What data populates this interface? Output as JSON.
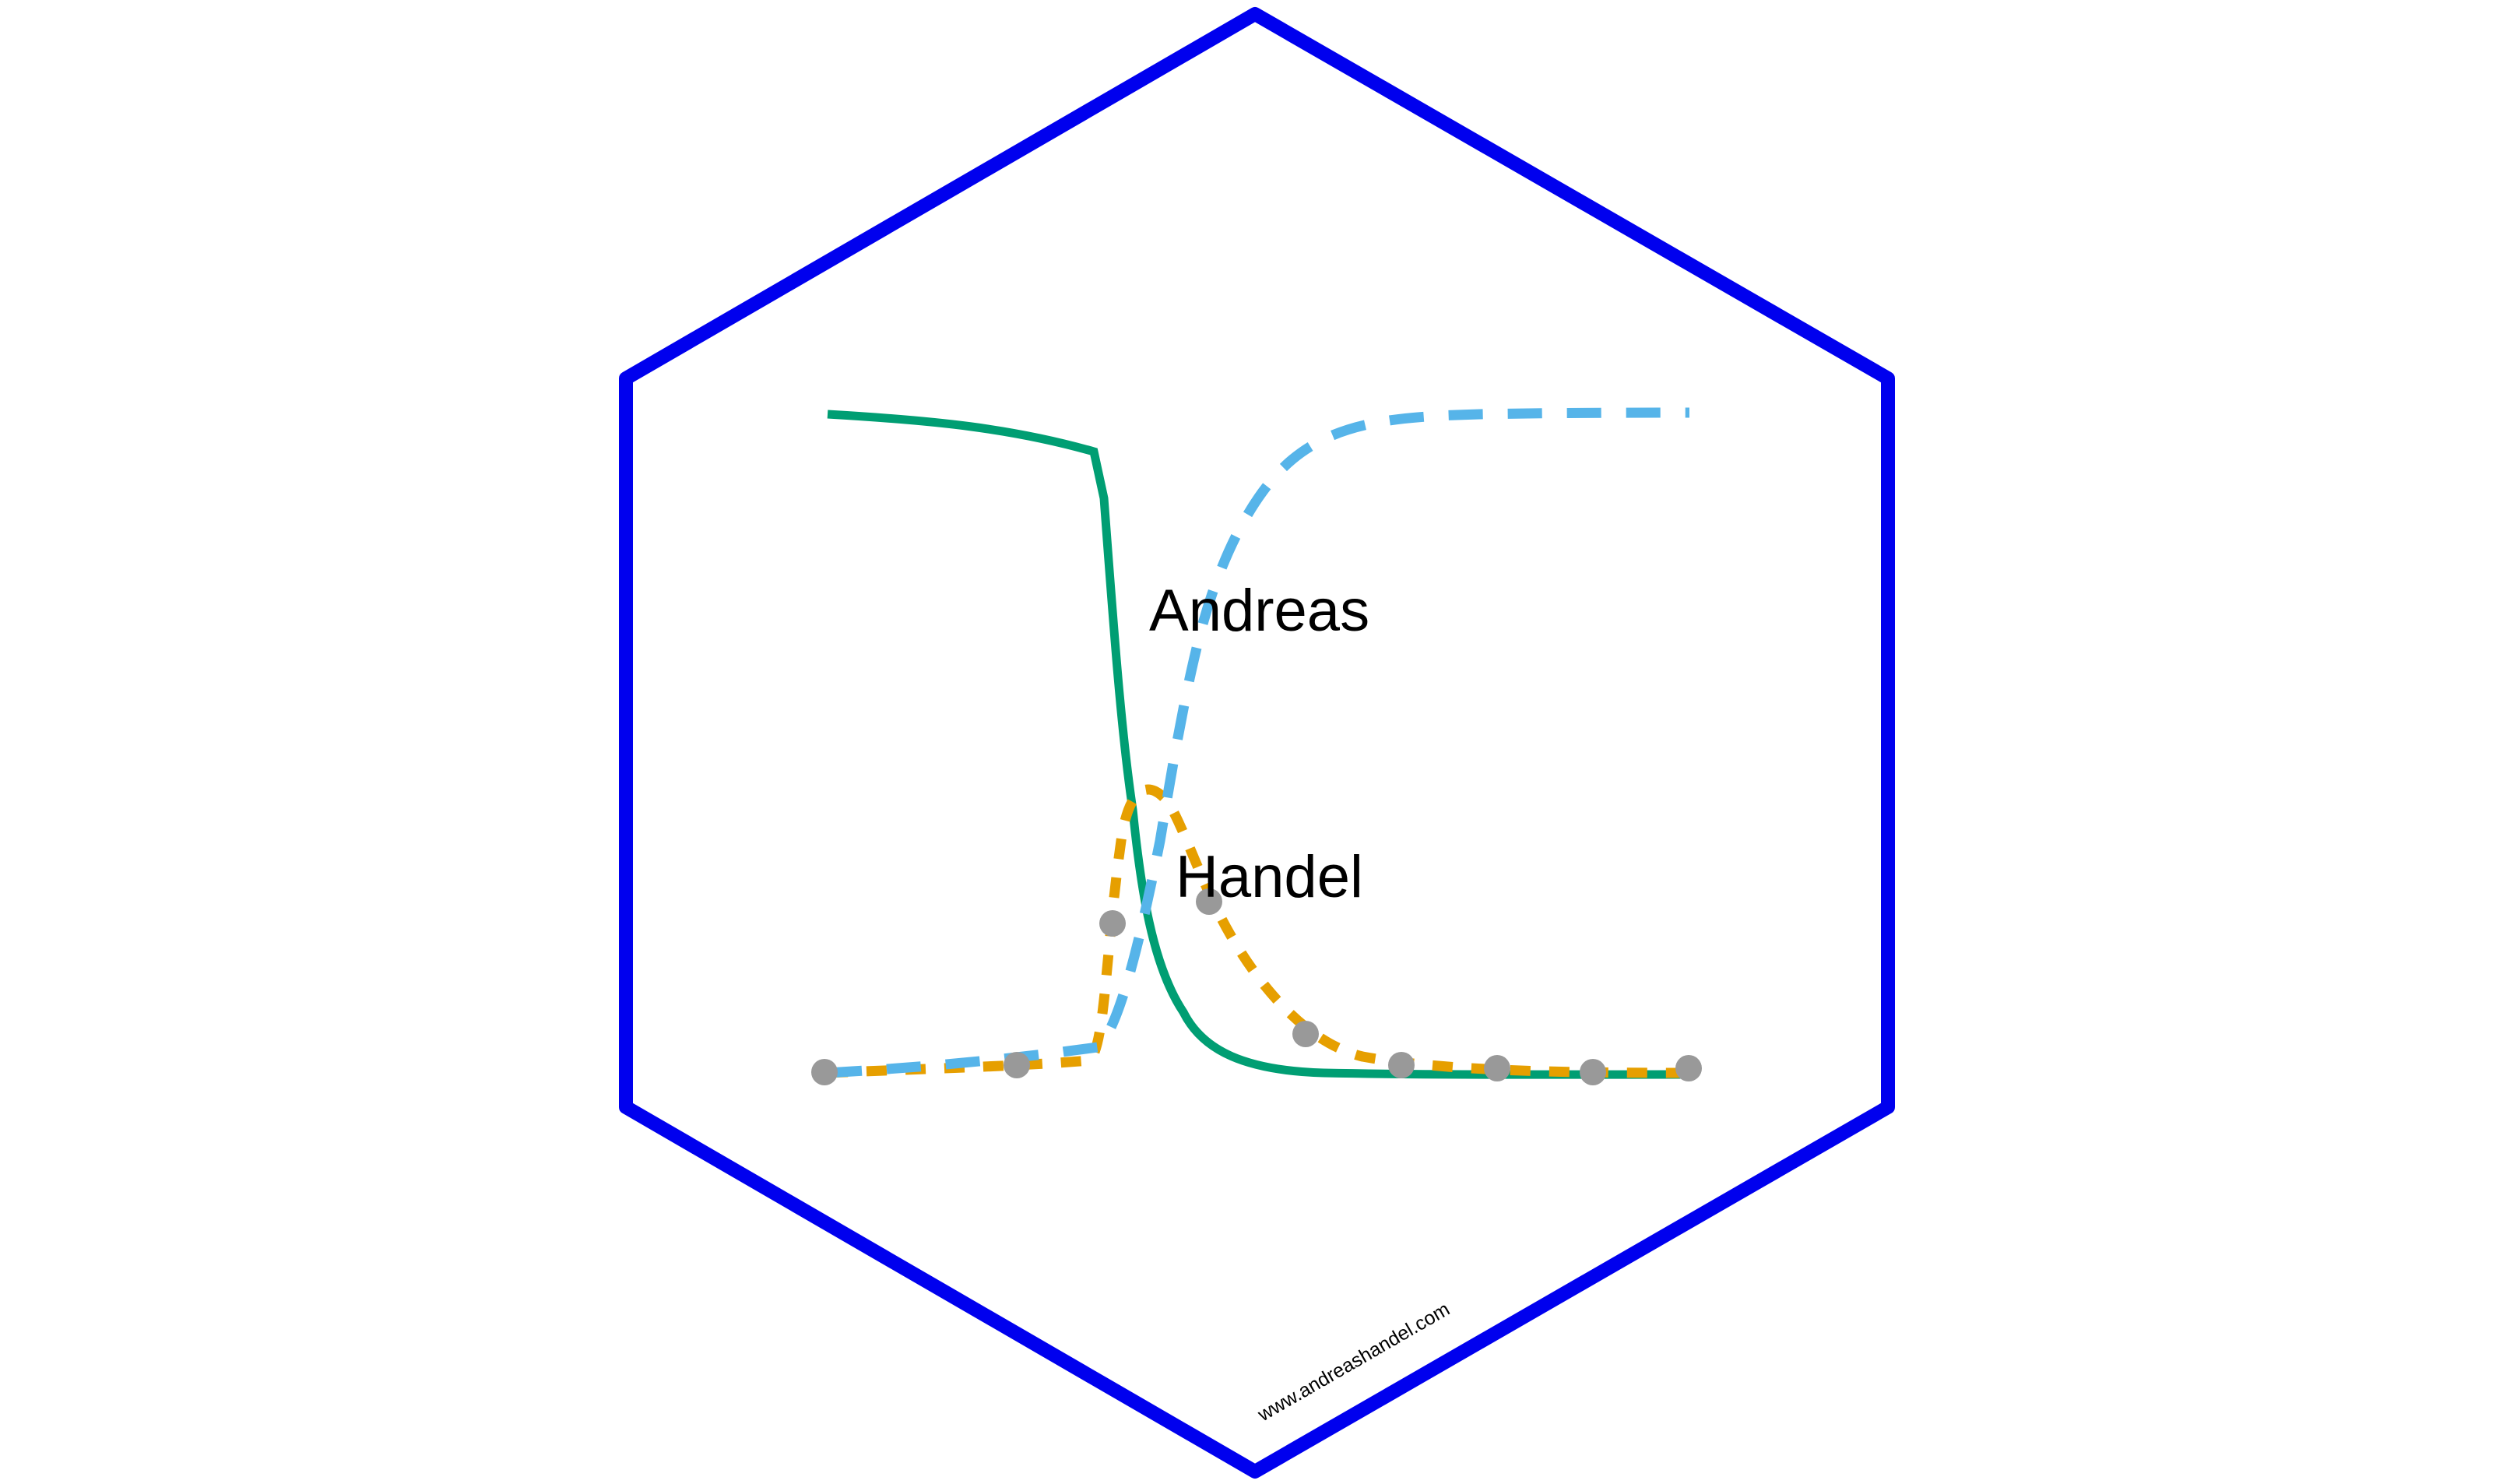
{
  "logo": {
    "first_name": "Andreas",
    "last_name": "Handel",
    "website": "www.andreashandel.com",
    "border_color": "#0000ee",
    "curve_colors": {
      "uninfected": "#009e73",
      "infected": "#e69f00",
      "recovered": "#56b4e9",
      "data_points": "#999999"
    }
  }
}
